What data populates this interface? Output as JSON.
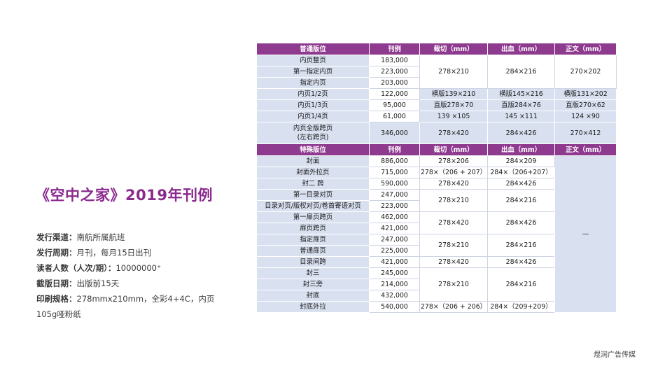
{
  "title": "《空中之家》2019年刊例",
  "info": [
    {
      "k": "发行渠道：",
      "v": "南航所属航班"
    },
    {
      "k": "发行周期：",
      "v": "月刊，每月15日出刊"
    },
    {
      "k": "读者人数（人次/期）：",
      "v": "10000000⁺"
    },
    {
      "k": "截版日期：",
      "v": "出版前15天"
    },
    {
      "k": "印刷规格：",
      "v": "278mmx210mm，全彩4+4C，内页"
    },
    {
      "k": "",
      "v": "105g哑粉纸"
    }
  ],
  "footer": "煜润广告传媒",
  "table1": {
    "headers": [
      "普通版位",
      "刊例",
      "裁切（mm）",
      "出血（mm）",
      "正文（mm）"
    ],
    "rows": [
      {
        "pos": "内页整页",
        "price": "183,000"
      },
      {
        "pos": "第一指定内页",
        "price": "223,000"
      },
      {
        "pos": "指定内页",
        "price": "203,000"
      },
      {
        "pos": "内页1/2页",
        "price": "122,000",
        "cut": "横版139×210",
        "bleed": "横版145×216",
        "text": "横版131×202"
      },
      {
        "pos": "内页1/3页",
        "price": "95,000",
        "cut": "直版278×70",
        "bleed": "直版284×76",
        "text": "直版270×62"
      },
      {
        "pos": "内页1/4页",
        "price": "61,000",
        "cut": "139 ×105",
        "bleed": "145 ×111",
        "text": "124 ×90"
      },
      {
        "pos": "内页全版跨页",
        "pos2": "(左右跨页)",
        "price": "346,000",
        "cut": "278×420",
        "bleed": "284×426",
        "text": "270×412"
      }
    ],
    "merged": {
      "cut": "278×210",
      "bleed": "284×216",
      "text": "270×202"
    }
  },
  "table2": {
    "headers": [
      "特殊版位",
      "刊例",
      "裁切（mm）",
      "出血（mm）",
      "正文（mm）"
    ],
    "text_merged": "—",
    "rows": [
      {
        "pos": "封面",
        "price": "886,000",
        "cut": "278×206",
        "bleed": "284×209"
      },
      {
        "pos": "封面外拉页",
        "price": "715,000",
        "cut": "278×（206 + 207）",
        "bleed": "284×（206+207）"
      },
      {
        "pos": "封二 跨",
        "price": "590,000",
        "cut": "278×420",
        "bleed": "284×426"
      },
      {
        "pos": "第一目录对页",
        "price": "247,000"
      },
      {
        "pos": "目录对页/版权对页/卷首寄语对页",
        "price": "223,000"
      },
      {
        "pos": "第一扉页跨页",
        "price": "462,000"
      },
      {
        "pos": "扉页跨页",
        "price": "421,000"
      },
      {
        "pos": "指定扉页",
        "price": "247,000"
      },
      {
        "pos": "普通扉页",
        "price": "225,000"
      },
      {
        "pos": "目录间跨",
        "price": "421,000",
        "cut": "278×420",
        "bleed": "284×426"
      },
      {
        "pos": "封三",
        "price": "245,000"
      },
      {
        "pos": "封三旁",
        "price": "214,000"
      },
      {
        "pos": "封底",
        "price": "432,000"
      },
      {
        "pos": "封底外拉",
        "price": "540,000",
        "cut": "278×（206 + 206）",
        "bleed": "284×（209+209）"
      }
    ],
    "merged_groups": [
      {
        "cut": "278×210",
        "bleed": "284×216"
      },
      {
        "cut": "278×420",
        "bleed": "284×426"
      },
      {
        "cut": "278×210",
        "bleed": "284×216"
      },
      {
        "cut": "278×210",
        "bleed": "284×216"
      }
    ]
  }
}
